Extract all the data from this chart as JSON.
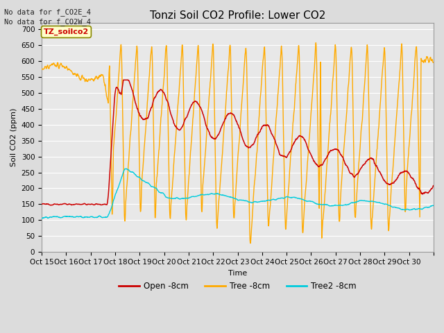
{
  "title": "Tonzi Soil CO2 Profile: Lower CO2",
  "ylabel": "Soil CO2 (ppm)",
  "xlabel": "Time",
  "top_text_1": "No data for f_CO2E_4",
  "top_text_2": "No data for f_CO2W_4",
  "box_label": "TZ_soilco2",
  "legend_labels": [
    "Open -8cm",
    "Tree -8cm",
    "Tree2 -8cm"
  ],
  "line_color_open": "#cc0000",
  "line_color_tree": "#ffaa00",
  "line_color_tree2": "#00ccdd",
  "ylim": [
    0,
    720
  ],
  "yticks": [
    0,
    50,
    100,
    150,
    200,
    250,
    300,
    350,
    400,
    450,
    500,
    550,
    600,
    650,
    700
  ],
  "bg_color": "#dcdcdc",
  "plot_bg_color": "#e8e8e8",
  "title_fontsize": 11,
  "axis_fontsize": 8,
  "tick_fontsize": 7.5
}
